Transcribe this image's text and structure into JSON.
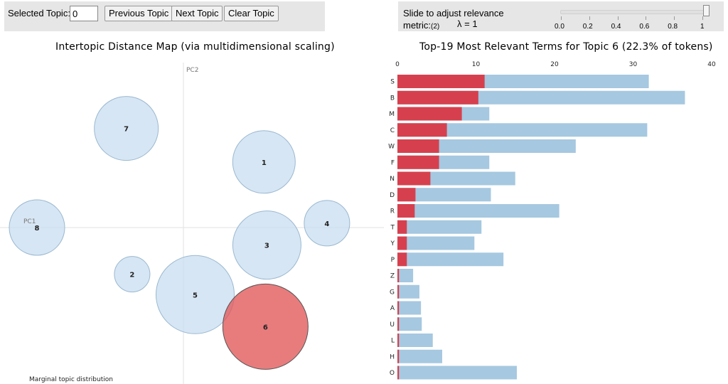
{
  "controls": {
    "selected_topic_label": "Selected Topic:",
    "selected_topic_value": "0",
    "prev_label": "Previous Topic",
    "next_label": "Next Topic",
    "clear_label": "Clear Topic",
    "slider_text_line1": "Slide to adjust relevance",
    "slider_text_line2": "metric:",
    "slider_footnote": "(2)",
    "lambda_text": "λ = 1",
    "lambda_value": 1,
    "slider_ticks": [
      "0.0",
      "0.2",
      "0.4",
      "0.6",
      "0.8",
      "1"
    ]
  },
  "left_title": "Intertopic Distance Map (via multidimensional scaling)",
  "right_title": "Top-19 Most Relevant Terms for Topic 6 (22.3% of tokens)",
  "chart_data": [
    {
      "type": "scatter",
      "title": "Intertopic Distance Map (via multidimensional scaling)",
      "xlabel": "PC1",
      "ylabel": "PC2",
      "footnote": "Marginal topic distribution",
      "selected_topic": "6",
      "colors": {
        "bubble": "#c6dbef",
        "bubble_stroke": "#9ab8d0",
        "selected": "#e15759",
        "selected_stroke": "#555555"
      },
      "points": [
        {
          "label": "1",
          "x": 0.55,
          "y": 0.45,
          "size": 44
        },
        {
          "label": "2",
          "x": -0.35,
          "y": -0.32,
          "size": 25
        },
        {
          "label": "3",
          "x": 0.57,
          "y": -0.12,
          "size": 48
        },
        {
          "label": "4",
          "x": 0.98,
          "y": 0.03,
          "size": 32
        },
        {
          "label": "5",
          "x": 0.08,
          "y": -0.46,
          "size": 55
        },
        {
          "label": "6",
          "x": 0.56,
          "y": -0.68,
          "size": 60
        },
        {
          "label": "7",
          "x": -0.39,
          "y": 0.68,
          "size": 45
        },
        {
          "label": "8",
          "x": -1.0,
          "y": 0.0,
          "size": 39
        }
      ]
    },
    {
      "type": "bar",
      "orientation": "horizontal",
      "title": "Top-19 Most Relevant Terms for Topic 6 (22.3% of tokens)",
      "xlim": [
        0,
        40
      ],
      "xticks": [
        0,
        10,
        20,
        30,
        40
      ],
      "colors": {
        "overall": "#a6c8e0",
        "topic": "#d6404e"
      },
      "categories": [
        "S",
        "B",
        "M",
        "C",
        "W",
        "F",
        "N",
        "D",
        "R",
        "T",
        "Y",
        "P",
        "Z",
        "G",
        "A",
        "U",
        "L",
        "H",
        "O"
      ],
      "series": [
        {
          "key": "overall",
          "values": [
            32.0,
            36.6,
            11.7,
            31.8,
            22.7,
            11.7,
            15.0,
            11.9,
            20.6,
            10.7,
            9.8,
            13.5,
            2.0,
            2.8,
            3.0,
            3.1,
            4.5,
            5.7,
            15.2
          ]
        },
        {
          "key": "topic",
          "values": [
            11.1,
            10.3,
            8.2,
            6.3,
            5.3,
            5.3,
            4.2,
            2.3,
            2.2,
            1.2,
            1.2,
            1.2,
            0.2,
            0.2,
            0.2,
            0.2,
            0.2,
            0.2,
            0.2
          ]
        }
      ]
    }
  ]
}
